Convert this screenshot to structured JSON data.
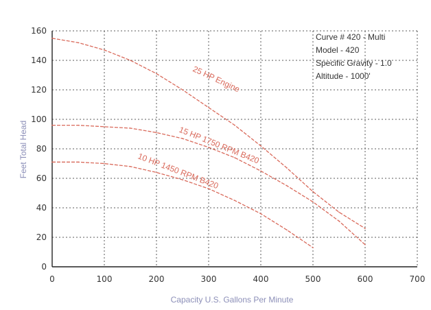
{
  "chart_data": {
    "type": "line",
    "title": "",
    "xlabel": "Capacity U.S. Gallons Per Minute",
    "ylabel": "Feet Total Head",
    "xlim": [
      0,
      700
    ],
    "ylim": [
      0,
      160
    ],
    "xticks": [
      "0",
      "100",
      "200",
      "300",
      "400",
      "500",
      "600",
      "700"
    ],
    "yticks": [
      "0",
      "20",
      "40",
      "60",
      "80",
      "100",
      "120",
      "140",
      "160"
    ],
    "grid": true,
    "annotation_lines": [
      "Curve # 420 - Multi",
      "Model - 420",
      "Specific Gravity - 1.0",
      "Altitude - 1000'"
    ],
    "series": [
      {
        "name": "25 HP Engine",
        "color": "#d9695a",
        "x": [
          0,
          50,
          100,
          150,
          200,
          250,
          300,
          350,
          400,
          450,
          500,
          550,
          600
        ],
        "y": [
          155,
          152,
          147,
          140,
          131,
          120,
          108,
          96,
          82,
          67,
          51,
          37,
          26
        ]
      },
      {
        "name": "15 HP 1750 RPM B420",
        "color": "#d9695a",
        "x": [
          0,
          50,
          100,
          150,
          200,
          250,
          300,
          350,
          400,
          450,
          500,
          550,
          600
        ],
        "y": [
          96,
          96,
          95,
          94,
          91,
          87,
          81,
          74,
          65,
          55,
          44,
          31,
          15
        ]
      },
      {
        "name": "10 HP 1450 RPM B420",
        "color": "#d9695a",
        "x": [
          0,
          50,
          100,
          150,
          200,
          250,
          300,
          350,
          400,
          450,
          500
        ],
        "y": [
          71,
          71,
          70,
          68,
          64,
          59,
          53,
          45,
          36,
          25,
          13
        ]
      }
    ]
  }
}
